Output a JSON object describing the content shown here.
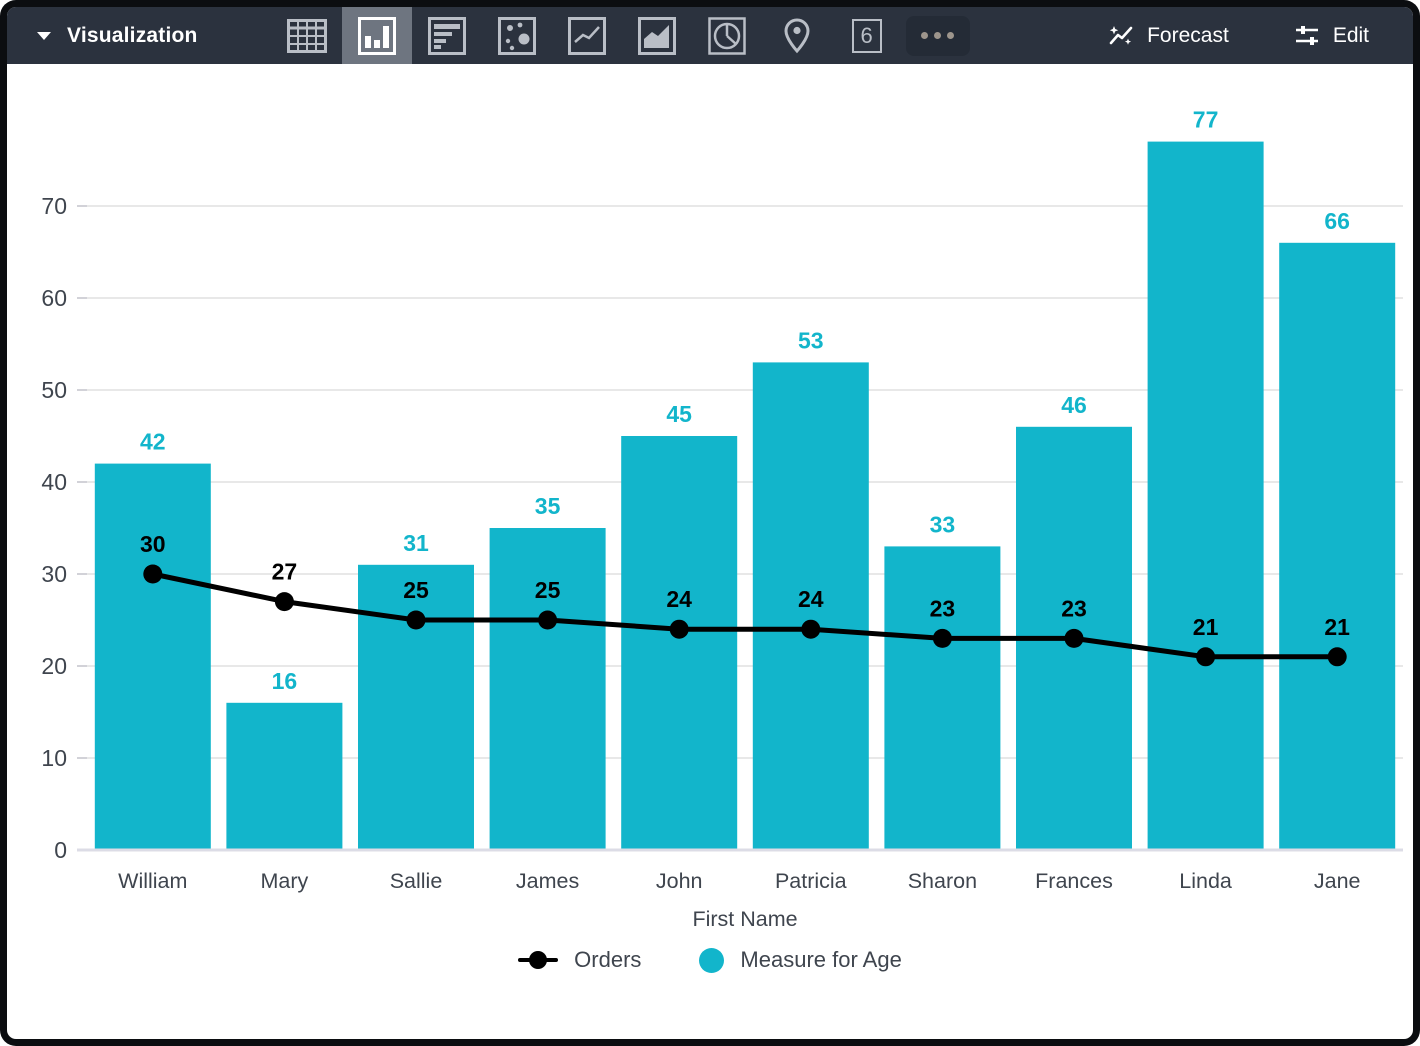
{
  "toolbar": {
    "title": "Visualization",
    "icons": [
      {
        "name": "table",
        "selected": false
      },
      {
        "name": "column-chart",
        "selected": true
      },
      {
        "name": "bar-chart",
        "selected": false
      },
      {
        "name": "scatter-chart",
        "selected": false
      },
      {
        "name": "line-chart",
        "selected": false
      },
      {
        "name": "area-chart",
        "selected": false
      },
      {
        "name": "pie-chart",
        "selected": false
      },
      {
        "name": "map",
        "selected": false
      },
      {
        "name": "single-value",
        "selected": false
      },
      {
        "name": "more",
        "selected": false
      }
    ],
    "single_value_glyph": "6",
    "forecast_label": "Forecast",
    "edit_label": "Edit"
  },
  "colors": {
    "accent_teal": "#12b5cb",
    "line_black": "#000000",
    "toolbar_bg": "#2b323e"
  },
  "chart_data": {
    "type": "bar",
    "subtype": "combo-bar-line",
    "categories": [
      "William",
      "Mary",
      "Sallie",
      "James",
      "John",
      "Patricia",
      "Sharon",
      "Frances",
      "Linda",
      "Jane"
    ],
    "series": [
      {
        "name": "Orders",
        "type": "line",
        "color": "#000000",
        "values": [
          30,
          27,
          25,
          25,
          24,
          24,
          23,
          23,
          21,
          21
        ]
      },
      {
        "name": "Measure for Age",
        "type": "bar",
        "color": "#12b5cb",
        "values": [
          42,
          16,
          31,
          35,
          45,
          53,
          33,
          46,
          77,
          66
        ]
      }
    ],
    "title": "",
    "xlabel": "First Name",
    "ylabel": "",
    "yticks": [
      0,
      10,
      20,
      30,
      40,
      50,
      60,
      70
    ],
    "ylim": [
      0,
      82
    ],
    "grid": true,
    "data_labels": true,
    "legend_position": "bottom"
  }
}
